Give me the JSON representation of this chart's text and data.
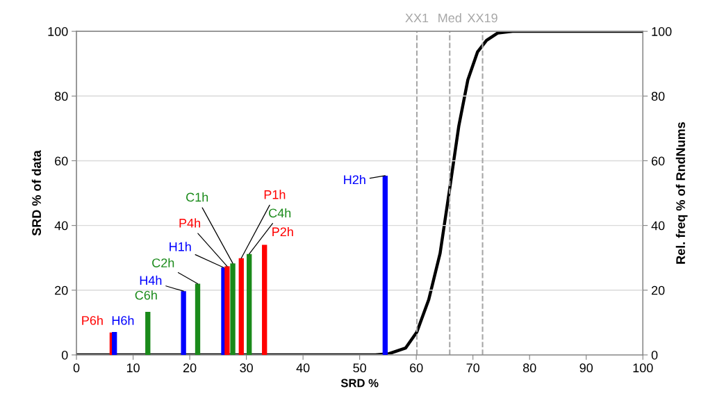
{
  "chart_data": {
    "type": "bar",
    "xlabel": "SRD %",
    "ylabel": "SRD % of data",
    "y2label": "Rel. freq % of RndNums",
    "xlim": [
      0,
      100
    ],
    "xticks": [
      0,
      10,
      20,
      30,
      40,
      50,
      60,
      70,
      80,
      90,
      100
    ],
    "ylim": [
      0,
      100
    ],
    "yticks": [
      0,
      20,
      40,
      60,
      80,
      100
    ],
    "y2lim": [
      0,
      100
    ],
    "y2ticks": [
      0,
      20,
      40,
      60,
      80,
      100
    ],
    "grid": "y",
    "legend": false,
    "series": [
      {
        "name": "P6h",
        "color": "#ff0000",
        "x": [
          6.3
        ],
        "values": [
          6.9
        ]
      },
      {
        "name": "H6h",
        "color": "#0000ff",
        "x": [
          6.7
        ],
        "values": [
          7.1
        ]
      },
      {
        "name": "C6h",
        "color": "#1a8a1a",
        "x": [
          12.6
        ],
        "values": [
          13.3
        ]
      },
      {
        "name": "H4h",
        "color": "#0000ff",
        "x": [
          18.9
        ],
        "values": [
          19.7
        ]
      },
      {
        "name": "C2h",
        "color": "#1a8a1a",
        "x": [
          21.4
        ],
        "values": [
          22.0
        ]
      },
      {
        "name": "H1h",
        "color": "#0000ff",
        "x": [
          26.0
        ],
        "values": [
          27.0
        ]
      },
      {
        "name": "P4h",
        "color": "#ff0000",
        "x": [
          26.6
        ],
        "values": [
          27.4
        ]
      },
      {
        "name": "C1h",
        "color": "#1a8a1a",
        "x": [
          27.6
        ],
        "values": [
          28.3
        ]
      },
      {
        "name": "P1h",
        "color": "#ff0000",
        "x": [
          29.1
        ],
        "values": [
          29.9
        ]
      },
      {
        "name": "C4h",
        "color": "#1a8a1a",
        "x": [
          30.5
        ],
        "values": [
          31.2
        ]
      },
      {
        "name": "P2h",
        "color": "#ff0000",
        "x": [
          33.2
        ],
        "values": [
          34.0
        ]
      },
      {
        "name": "H2h",
        "color": "#0000ff",
        "x": [
          54.5
        ],
        "values": [
          55.4
        ]
      },
      {
        "type": "line",
        "axis": "y2",
        "color": "#000000",
        "x": [
          0,
          52.8,
          55.2,
          58.1,
          60.1,
          62.2,
          64.2,
          65.9,
          67.5,
          69.1,
          70.8,
          72.4,
          74.4,
          77,
          100
        ],
        "values": [
          0,
          0,
          0.4,
          2.1,
          7.1,
          17.1,
          31.4,
          51.4,
          70.7,
          85.0,
          93.6,
          97.2,
          99.5,
          100,
          100
        ]
      }
    ],
    "ref_lines": [
      {
        "axis": "x",
        "value": 60.1,
        "label": "XX1",
        "color": "#a6a6a6",
        "line_style": "dashed"
      },
      {
        "axis": "x",
        "value": 65.9,
        "label": "Med",
        "color": "#a6a6a6",
        "line_style": "dashed"
      },
      {
        "axis": "x",
        "value": 71.7,
        "label": "XX19",
        "color": "#a6a6a6",
        "line_style": "dashed"
      }
    ]
  }
}
